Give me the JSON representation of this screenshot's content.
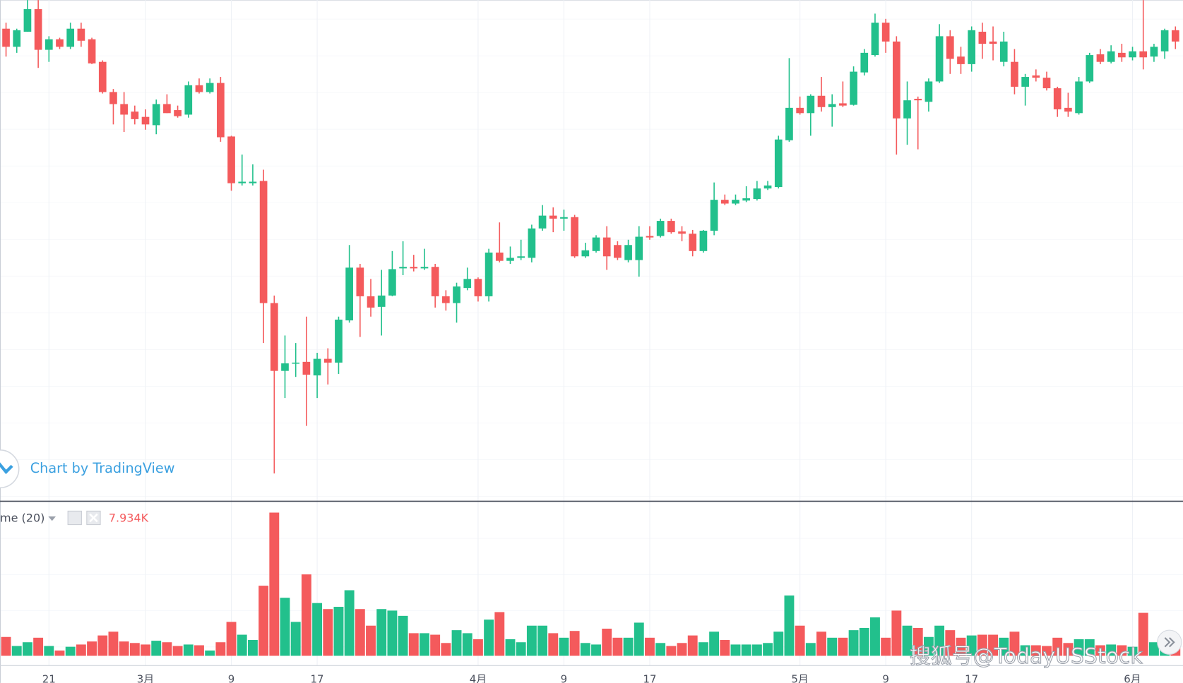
{
  "chart_data": {
    "type": "candlestick",
    "credit": "Chart by TradingView",
    "volume_title": "me (20)",
    "volume_value": "7.934K",
    "watermark": "搜狐号@TodayUSStock",
    "up_color": "#22c08c",
    "down_color": "#f45a5c",
    "ylim": [
      35,
      700
    ],
    "volume_ylim": [
      0,
      200
    ],
    "categories": [
      null,
      null,
      null,
      null,
      "21",
      null,
      null,
      null,
      null,
      null,
      null,
      null,
      null,
      "3月",
      null,
      null,
      null,
      null,
      null,
      null,
      null,
      "9",
      null,
      null,
      null,
      null,
      null,
      null,
      null,
      "17",
      null,
      null,
      null,
      null,
      null,
      null,
      null,
      null,
      null,
      null,
      null,
      null,
      null,
      null,
      "4月",
      null,
      null,
      null,
      null,
      null,
      null,
      null,
      "9",
      null,
      null,
      null,
      null,
      null,
      null,
      null,
      "17",
      null,
      null,
      null,
      null,
      null,
      null,
      null,
      null,
      null,
      null,
      null,
      null,
      null,
      "5月",
      null,
      null,
      null,
      null,
      null,
      null,
      null,
      "9",
      null,
      null,
      null,
      null,
      null,
      null,
      null,
      "17",
      null,
      null,
      null,
      null,
      null,
      null,
      null,
      null,
      null,
      null,
      null,
      null,
      null,
      null,
      "6月",
      null,
      null,
      null,
      null
    ],
    "open": [
      662,
      638,
      658,
      688,
      634,
      648,
      638,
      662,
      648,
      618,
      578,
      562,
      552,
      545,
      534,
      562,
      554,
      548,
      587,
      578,
      590,
      519,
      457,
      457,
      460,
      298,
      208,
      218,
      220,
      202,
      224,
      219,
      275,
      345,
      307,
      293,
      308,
      344,
      346,
      344,
      346,
      307,
      298,
      318,
      330,
      307,
      365,
      354,
      358,
      358,
      397,
      414,
      410,
      412,
      360,
      367,
      385,
      375,
      355,
      355,
      387,
      387,
      407,
      393,
      390,
      367,
      394,
      435,
      430,
      434,
      436,
      450,
      452,
      514,
      557,
      550,
      573,
      558,
      563,
      561,
      604,
      627,
      670,
      645,
      543,
      569,
      565,
      592,
      652,
      625,
      615,
      658,
      645,
      618,
      618,
      585,
      600,
      597,
      583,
      557,
      550,
      592,
      628,
      618,
      630,
      624,
      632,
      625,
      632,
      660
    ],
    "high": [
      670,
      662,
      700,
      700,
      652,
      650,
      670,
      670,
      650,
      620,
      582,
      578,
      560,
      555,
      568,
      575,
      560,
      592,
      596,
      596,
      598,
      520,
      495,
      482,
      475,
      308,
      255,
      245,
      280,
      232,
      238,
      280,
      375,
      350,
      330,
      342,
      367,
      380,
      362,
      370,
      350,
      315,
      325,
      345,
      332,
      370,
      405,
      373,
      382,
      402,
      428,
      425,
      422,
      415,
      378,
      388,
      400,
      380,
      382,
      400,
      400,
      410,
      410,
      400,
      395,
      395,
      458,
      442,
      442,
      453,
      460,
      460,
      520,
      623,
      572,
      575,
      598,
      575,
      592,
      612,
      635,
      682,
      675,
      652,
      592,
      572,
      596,
      668,
      660,
      638,
      665,
      670,
      665,
      658,
      635,
      602,
      608,
      605,
      585,
      577,
      598,
      630,
      635,
      640,
      642,
      638,
      700,
      642,
      662,
      665
    ],
    "low": [
      625,
      630,
      658,
      610,
      618,
      635,
      635,
      638,
      615,
      576,
      535,
      525,
      535,
      528,
      522,
      550,
      544,
      544,
      576,
      576,
      512,
      447,
      454,
      454,
      245,
      72,
      172,
      200,
      135,
      172,
      190,
      204,
      272,
      253,
      280,
      255,
      307,
      335,
      340,
      342,
      292,
      288,
      272,
      315,
      300,
      300,
      352,
      350,
      355,
      352,
      394,
      392,
      394,
      358,
      358,
      365,
      342,
      355,
      352,
      333,
      382,
      385,
      390,
      380,
      360,
      365,
      388,
      428,
      428,
      432,
      434,
      448,
      450,
      512,
      548,
      520,
      552,
      532,
      558,
      560,
      600,
      625,
      630,
      495,
      508,
      502,
      552,
      590,
      602,
      602,
      605,
      622,
      620,
      612,
      575,
      560,
      592,
      580,
      545,
      545,
      548,
      590,
      615,
      616,
      618,
      620,
      608,
      618,
      622,
      635
    ],
    "close": [
      638,
      660,
      688,
      634,
      648,
      638,
      662,
      646,
      616,
      578,
      562,
      548,
      542,
      535,
      562,
      550,
      546,
      587,
      578,
      590,
      518,
      457,
      459,
      459,
      298,
      208,
      218,
      219,
      203,
      224,
      219,
      276,
      345,
      307,
      292,
      308,
      343,
      346,
      344,
      346,
      307,
      298,
      320,
      330,
      307,
      365,
      354,
      358,
      360,
      397,
      414,
      410,
      412,
      360,
      368,
      385,
      360,
      358,
      375,
      386,
      385,
      407,
      392,
      390,
      367,
      394,
      435,
      430,
      435,
      437,
      450,
      454,
      515,
      557,
      550,
      573,
      558,
      562,
      560,
      605,
      630,
      670,
      645,
      543,
      567,
      567,
      592,
      652,
      622,
      615,
      660,
      642,
      642,
      645,
      585,
      598,
      597,
      583,
      555,
      552,
      592,
      627,
      618,
      632,
      624,
      632,
      624,
      638,
      660,
      645
    ],
    "volume": [
      25,
      13,
      18,
      24,
      13,
      7,
      12,
      15,
      19,
      27,
      32,
      19,
      17,
      15,
      20,
      18,
      13,
      15,
      14,
      7,
      18,
      45,
      28,
      21,
      93,
      190,
      77,
      45,
      108,
      70,
      62,
      65,
      87,
      62,
      40,
      62,
      60,
      53,
      30,
      30,
      28,
      17,
      34,
      30,
      22,
      48,
      58,
      22,
      18,
      40,
      40,
      30,
      24,
      33,
      17,
      15,
      36,
      24,
      24,
      44,
      24,
      17,
      13,
      17,
      27,
      18,
      32,
      21,
      15,
      15,
      15,
      17,
      32,
      80,
      40,
      17,
      32,
      24,
      24,
      34,
      37,
      51,
      24,
      60,
      40,
      37,
      25,
      40,
      34,
      24,
      27,
      28,
      28,
      24,
      32,
      14,
      14,
      13,
      24,
      17,
      22,
      22,
      14,
      15,
      14,
      12,
      57,
      18,
      15,
      17
    ]
  }
}
